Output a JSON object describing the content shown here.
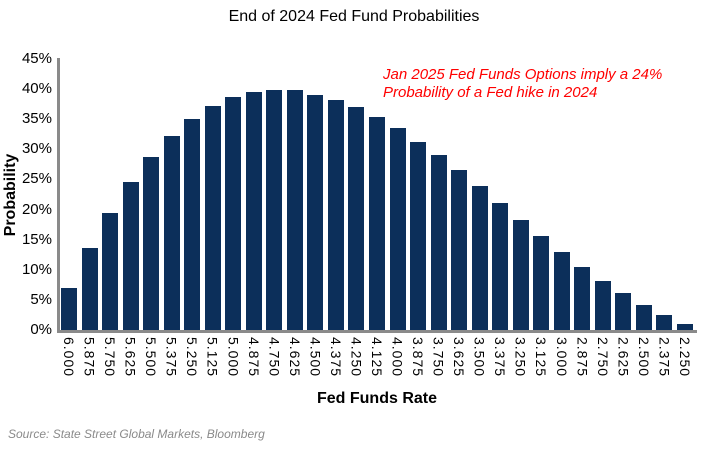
{
  "source_note": "Source: State Street Global Markets, Bloomberg",
  "chart_data": {
    "type": "bar",
    "title": "End of 2024 Fed Fund Probabilities",
    "xlabel": "Fed Funds Rate",
    "ylabel": "Probability",
    "categories": [
      "6.000",
      "5.875",
      "5.750",
      "5.625",
      "5.500",
      "5.375",
      "5.250",
      "5.125",
      "5.000",
      "4.875",
      "4.750",
      "4.625",
      "4.500",
      "4.375",
      "4.250",
      "4.125",
      "4.000",
      "3.875",
      "3.750",
      "3.625",
      "3.500",
      "3.375",
      "3.250",
      "3.125",
      "3.000",
      "2.875",
      "2.750",
      "2.625",
      "2.500",
      "2.375",
      "2.250"
    ],
    "values": [
      7.0,
      13.7,
      19.4,
      24.6,
      28.7,
      32.2,
      35.1,
      37.2,
      38.7,
      39.5,
      39.9,
      39.8,
      39.1,
      38.2,
      37.0,
      35.4,
      33.5,
      31.3,
      29.0,
      26.5,
      23.9,
      21.1,
      18.3,
      15.7,
      13.0,
      10.5,
      8.2,
      6.1,
      4.1,
      2.5,
      1.0
    ],
    "ylim": [
      0,
      45
    ],
    "ytick_step": 5,
    "ytick_suffix": "%",
    "grid": false,
    "legend": "none",
    "bar_color": "#0C2F5A",
    "axis_color": "#8a8a8a",
    "annotation": {
      "lines": [
        "Jan 2025 Fed Funds Options imply a 24%",
        "Probability of a Fed hike in 2024"
      ],
      "color": "#FF0000"
    }
  }
}
